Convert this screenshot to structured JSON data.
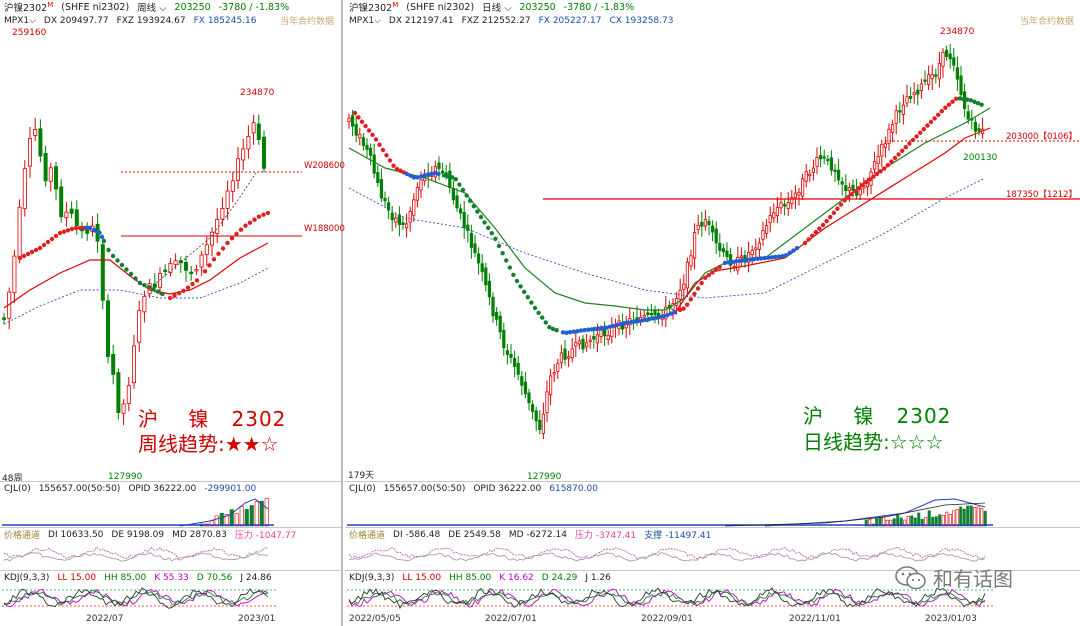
{
  "weekly": {
    "title": "沪镍2302",
    "title_sup": "M",
    "exchange": "(SHFE ni2302)",
    "period": "周线",
    "price": "203250",
    "change": "-3780 / -1.83%",
    "contract_label": "当年合约数据",
    "indicator_line": "MPX1",
    "dx": "DX 209497.77",
    "fxz": "FXZ 193924.67",
    "fx": "FX 185245.16",
    "high_label": "259160",
    "recent_high_label": "234870",
    "low_label": "127990",
    "level_a": "W208600",
    "level_b": "W188000",
    "bars_count": "48周",
    "big_name": "沪    镍   2302",
    "big_trend": "周线趋势:★★☆",
    "cjl": "CJL(0)",
    "cjl_vals": "155657.00(50:50)",
    "opid": "OPID 36222.00",
    "cjl_extra": "-299901.00",
    "ind2_name": "价格通道",
    "di": "DI 10633.50",
    "de": "DE 9198.09",
    "md": "MD 2870.83",
    "pressure": "压力 -1047.77",
    "kdj": "KDJ(9,3,3)",
    "ll": "LL 15.00",
    "hh": "HH 85.00",
    "k": "K 55.33",
    "d": "D 70.56",
    "j": "J 24.86",
    "date1": "2022/07",
    "date2": "2023/01"
  },
  "daily": {
    "title": "沪镍2302",
    "title_sup": "M",
    "exchange": "(SHFE ni2302)",
    "period": "日线",
    "price": "203250",
    "change": "-3780 / -1.83%",
    "contract_label": "当年合约数据",
    "indicator_line": "MPX1",
    "dx": "DX 212197.41",
    "fxz": "FXZ 212552.27",
    "fx": "FX 205227.17",
    "cx": "CX 193258.73",
    "high_label": "234870",
    "low_label": "127990",
    "recent_low_label": "200130",
    "level_a": "203000【0106】",
    "level_b": "187350【1212】",
    "bars_count": "179天",
    "big_name": "沪    镍   2302",
    "big_trend": "日线趋势:☆☆☆",
    "cjl": "CJL(0)",
    "cjl_vals": "155657.00(50:50)",
    "opid": "OPID 36222.00",
    "cjl_extra": "615870.00",
    "ind2_name": "价格通道",
    "di": "DI -586.48",
    "de": "DE 2549.58",
    "md": "MD -6272.14",
    "pressure": "压力 -3747.41",
    "support": "支撑 -11497.41",
    "kdj": "KDJ(9,3,3)",
    "ll": "LL 15.00",
    "hh": "HH 85.00",
    "k": "K 16.62",
    "d": "D 24.29",
    "j": "J 1.26",
    "dates": [
      "2022/05/05",
      "2022/07/01",
      "2022/09/01",
      "2022/11/01",
      "2023/01/03"
    ]
  },
  "watermark": "和有话图",
  "colors": {
    "up": "#e00000",
    "down": "#008000",
    "blue": "#1a60d0",
    "level": "#e00000"
  }
}
